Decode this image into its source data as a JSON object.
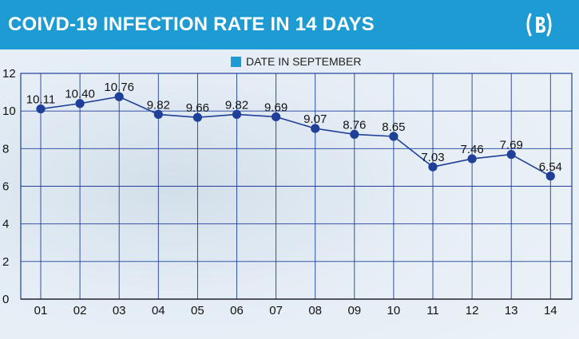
{
  "header": {
    "title": "COIVD-19 INFECTION RATE IN 14 DAYS",
    "logo_icon": "bangla-tribune-logo-icon",
    "background_color": "#1e9bd2"
  },
  "chart_data": {
    "type": "line",
    "title": "COIVD-19 INFECTION RATE IN 14 DAYS",
    "categories": [
      "01",
      "02",
      "03",
      "04",
      "05",
      "06",
      "07",
      "08",
      "09",
      "10",
      "11",
      "12",
      "13",
      "14"
    ],
    "series": [
      {
        "name": "DATE IN SEPTEMBER",
        "values": [
          10.11,
          10.4,
          10.76,
          9.82,
          9.66,
          9.82,
          9.69,
          9.07,
          8.76,
          8.65,
          7.03,
          7.46,
          7.69,
          6.54
        ],
        "labels": [
          "10.11",
          "10.40",
          "10.76",
          "9.82",
          "9.66",
          "9.82",
          "9.69",
          "9.07",
          "8.76",
          "8.65",
          "7.03",
          "7.46",
          "7.69",
          "6.54"
        ],
        "color": "#1f3f99"
      }
    ],
    "ylim": [
      0,
      12
    ],
    "yticks": [
      "0",
      "2",
      "4",
      "6",
      "8",
      "10",
      "12"
    ],
    "grid": true,
    "legend_position": "top-center",
    "grid_color": "#1f3f99"
  }
}
